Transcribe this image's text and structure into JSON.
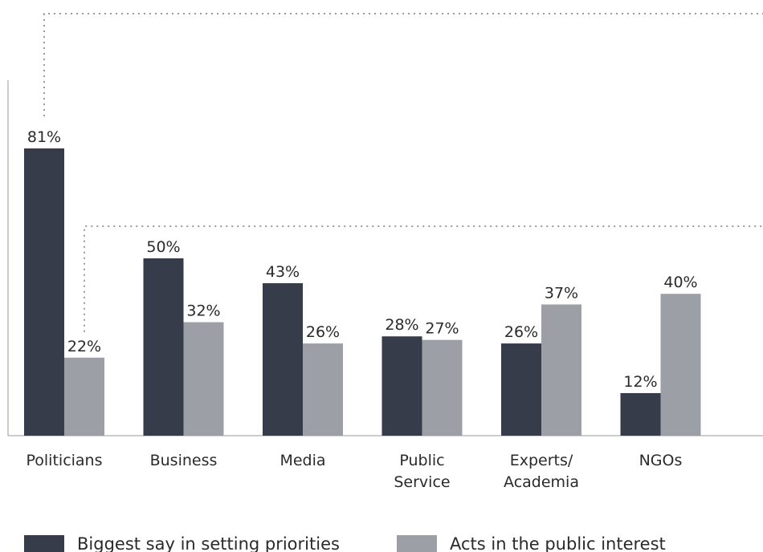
{
  "chart_data": {
    "type": "bar",
    "categories": [
      [
        "Politicians"
      ],
      [
        "Business"
      ],
      [
        "Media"
      ],
      [
        "Public",
        "Service"
      ],
      [
        "Experts/",
        "Academia"
      ],
      [
        "NGOs"
      ]
    ],
    "series": [
      {
        "name": "Biggest say in setting priorities",
        "values": [
          81,
          50,
          43,
          28,
          26,
          12
        ],
        "labels": [
          "81%",
          "50%",
          "43%",
          "28%",
          "26%",
          "12%"
        ],
        "color": "#373c4b"
      },
      {
        "name": "Acts in the public interest",
        "values": [
          22,
          32,
          26,
          27,
          37,
          40
        ],
        "labels": [
          "22%",
          "32%",
          "26%",
          "27%",
          "37%",
          "40%"
        ],
        "color": "#9c9fa6"
      }
    ],
    "ylim": [
      0,
      100
    ],
    "grid": false,
    "legend_position": "bottom",
    "annotations": {
      "dotted_leader_lines": true
    }
  }
}
